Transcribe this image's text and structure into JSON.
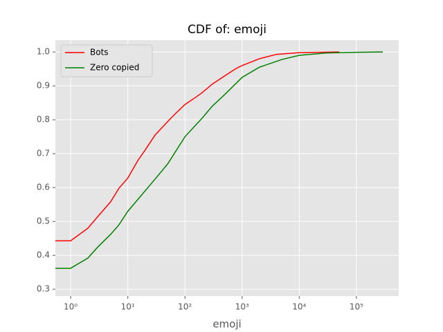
{
  "chart_data": {
    "type": "line",
    "title": "CDF of: emoji",
    "x_label": "emoji",
    "x_scale": "log",
    "grid": true,
    "legend": "upper left",
    "xlim": [
      0.54,
      550000
    ],
    "xticks": [
      {
        "value": 1,
        "label": "10⁰"
      },
      {
        "value": 10,
        "label": "10¹"
      },
      {
        "value": 100,
        "label": "10²"
      },
      {
        "value": 1000,
        "label": "10³"
      },
      {
        "value": 10000,
        "label": "10⁴"
      },
      {
        "value": 100000,
        "label": "10⁵"
      }
    ],
    "ylim": [
      0.28,
      1.035
    ],
    "yticks": [
      0.3,
      0.4,
      0.5,
      0.6,
      0.7,
      0.8,
      0.9,
      {
        "value": 1,
        "label": "1.0"
      }
    ],
    "series": [
      {
        "name": "Bots",
        "color": "#ff0000",
        "x": [
          0.54,
          1,
          2,
          3,
          5,
          7,
          10,
          15,
          20,
          30,
          50,
          70,
          100,
          150,
          200,
          300,
          500,
          800,
          1000,
          2000,
          4000,
          10000,
          50000
        ],
        "values": [
          0.443,
          0.443,
          0.48,
          0.515,
          0.558,
          0.598,
          0.628,
          0.68,
          0.71,
          0.755,
          0.795,
          0.82,
          0.845,
          0.865,
          0.88,
          0.905,
          0.93,
          0.952,
          0.96,
          0.98,
          0.993,
          0.998,
          1.0
        ]
      },
      {
        "name": "Zero copied",
        "color": "#008000",
        "x": [
          0.54,
          1,
          2,
          3,
          5,
          7,
          10,
          20,
          30,
          50,
          100,
          200,
          300,
          500,
          1000,
          2000,
          5000,
          10000,
          30000,
          100000,
          290000
        ],
        "values": [
          0.362,
          0.362,
          0.392,
          0.425,
          0.462,
          0.49,
          0.53,
          0.59,
          0.625,
          0.67,
          0.75,
          0.805,
          0.84,
          0.875,
          0.925,
          0.955,
          0.978,
          0.99,
          0.997,
          0.999,
          1.0
        ]
      }
    ]
  }
}
